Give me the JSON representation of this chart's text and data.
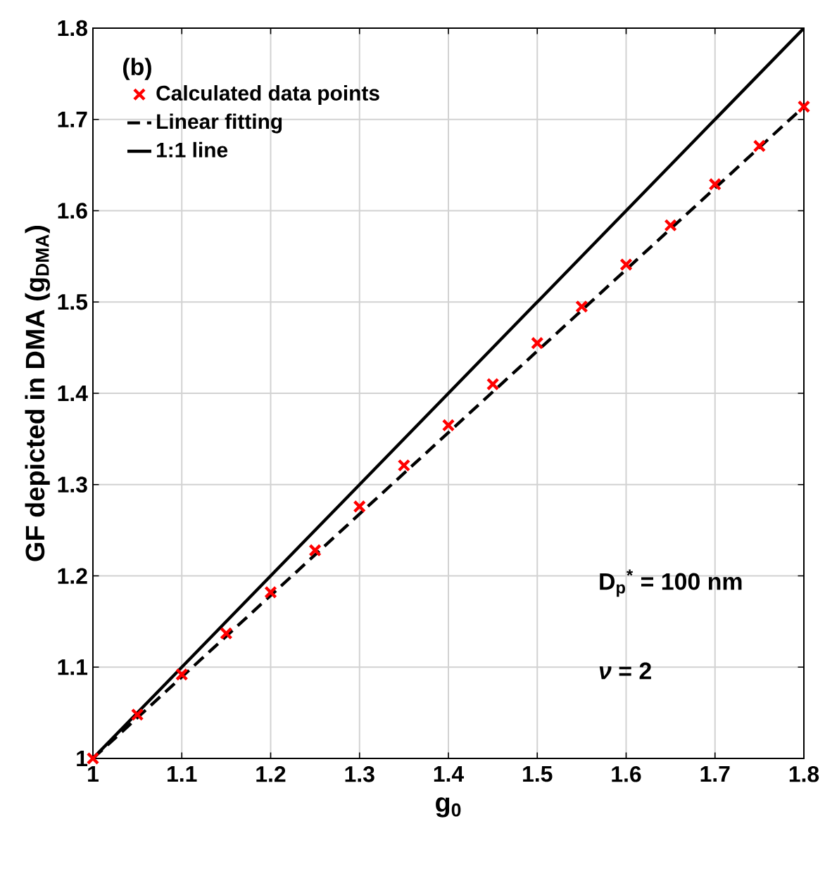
{
  "chart_data": {
    "type": "scatter",
    "xlabel": "g$_{0}$",
    "ylabel": "GF depicted in DMA (g$_{DMA}$)",
    "annotations": [
      "(b)",
      "D$_{p}$$^{*}$ = 100 nm",
      "*ν* = 2"
    ],
    "xlim": [
      1,
      1.8
    ],
    "ylim": [
      1,
      1.8
    ],
    "xticks": [
      1,
      1.1,
      1.2,
      1.3,
      1.4,
      1.5,
      1.6,
      1.7,
      1.8
    ],
    "yticks": [
      1,
      1.1,
      1.2,
      1.3,
      1.4,
      1.5,
      1.6,
      1.7,
      1.8
    ],
    "grid": true,
    "legend": "top left",
    "series": [
      {
        "name": "Calculated data points",
        "marker": "cross",
        "color": "#ff0000",
        "x": [
          1,
          1.05,
          1.1,
          1.15,
          1.2,
          1.25,
          1.3,
          1.35,
          1.4,
          1.45,
          1.5,
          1.55,
          1.6,
          1.65,
          1.7,
          1.75,
          1.8
        ],
        "values": [
          1,
          1.048,
          1.092,
          1.137,
          1.182,
          1.228,
          1.276,
          1.321,
          1.365,
          1.41,
          1.455,
          1.495,
          1.541,
          1.584,
          1.629,
          1.671,
          1.714
        ]
      },
      {
        "name": "Linear fitting",
        "type": "line",
        "line_style": "dashed",
        "color": "#000000",
        "x": [
          1,
          1.8
        ],
        "values": [
          1,
          1.714
        ]
      },
      {
        "name": "1:1 line",
        "type": "line",
        "line_style": "solid",
        "color": "#000000",
        "x": [
          1,
          1.8
        ],
        "values": [
          1,
          1.8
        ]
      }
    ]
  }
}
